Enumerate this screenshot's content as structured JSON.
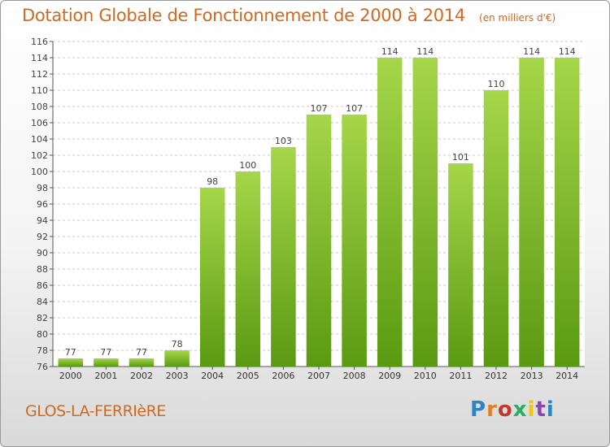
{
  "header": {
    "title": "Dotation Globale de Fonctionnement de 2000 à 2014",
    "unit": "(en milliers d'€)"
  },
  "footer": {
    "commune": "GLOS-LA-FERRIèRE",
    "brand": "Proxiti",
    "brand_colors": [
      "#2e86c1",
      "#e67e22",
      "#c0392b",
      "#27ae60",
      "#f1c40f",
      "#8e44ad",
      "#2e86c1"
    ]
  },
  "colors": {
    "bar_top": "#a6d64a",
    "bar_bottom": "#5a9a12",
    "title": "#d2691e",
    "grid": "#c8c8c8"
  },
  "chart_data": {
    "type": "bar",
    "title": "Dotation Globale de Fonctionnement de 2000 à 2014",
    "subtitle": "(en milliers d'€)",
    "categories": [
      "2000",
      "2001",
      "2002",
      "2003",
      "2004",
      "2005",
      "2006",
      "2007",
      "2008",
      "2009",
      "2010",
      "2011",
      "2012",
      "2013",
      "2014"
    ],
    "values": [
      77,
      77,
      77,
      78,
      98,
      100,
      103,
      107,
      107,
      114,
      114,
      101,
      110,
      114,
      114
    ],
    "ylim": [
      76,
      116
    ],
    "ytick_step": 2,
    "grid": true,
    "data_labels": true
  }
}
